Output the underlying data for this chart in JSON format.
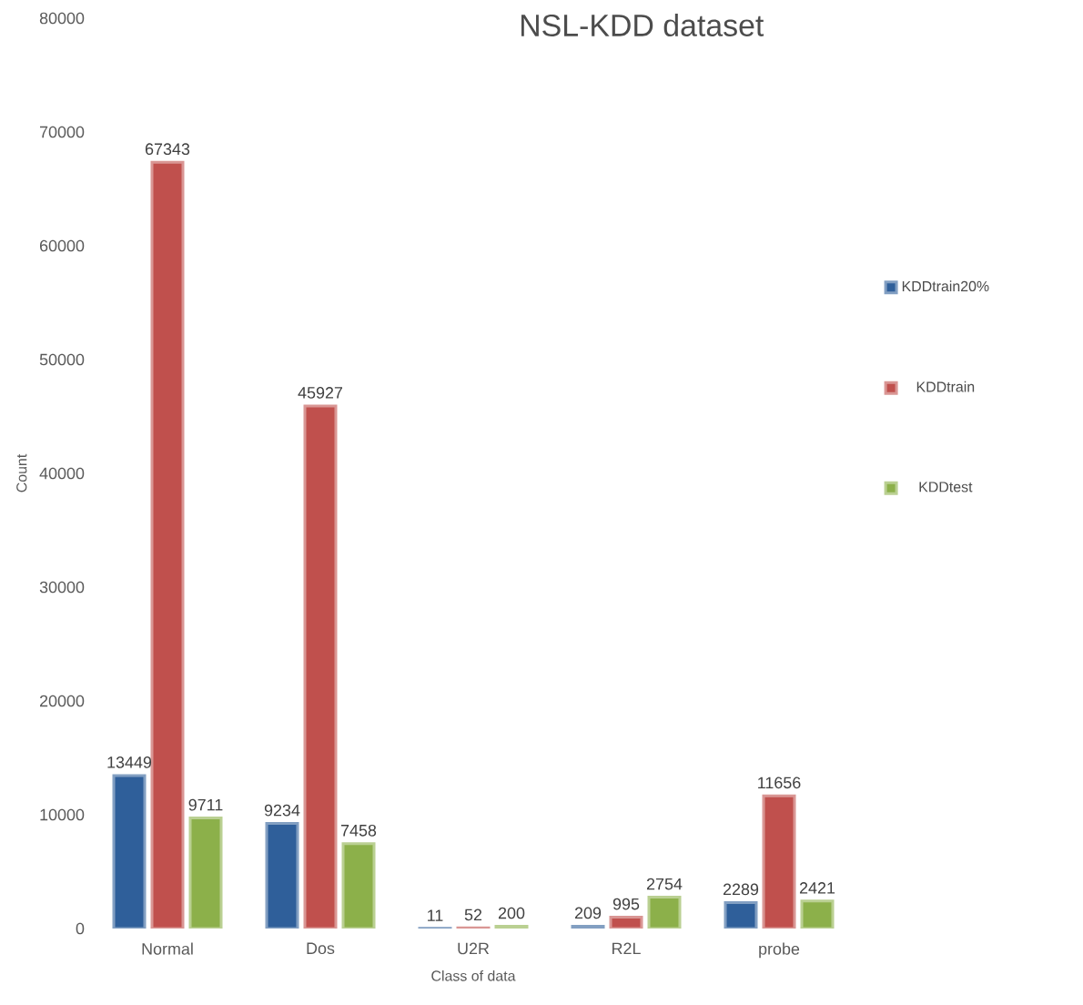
{
  "chart_data": {
    "type": "bar",
    "title": "NSL-KDD dataset",
    "xlabel": "Class of data",
    "ylabel": "Count",
    "categories": [
      "Normal",
      "Dos",
      "U2R",
      "R2L",
      "probe"
    ],
    "series": [
      {
        "name": "KDDtrain20%",
        "color": "#2f5f9a",
        "values": [
          13449,
          9234,
          11,
          209,
          2289
        ]
      },
      {
        "name": "KDDtrain",
        "color": "#c0504d",
        "values": [
          67343,
          45927,
          52,
          995,
          11656
        ]
      },
      {
        "name": "KDDtest",
        "color": "#8cb04a",
        "values": [
          9711,
          7458,
          200,
          2754,
          2421
        ]
      }
    ],
    "ylim": [
      0,
      80000
    ],
    "yticks": [
      0,
      10000,
      20000,
      30000,
      40000,
      50000,
      60000,
      70000,
      80000
    ],
    "data_labels": true,
    "legend": "right",
    "grid": false
  }
}
